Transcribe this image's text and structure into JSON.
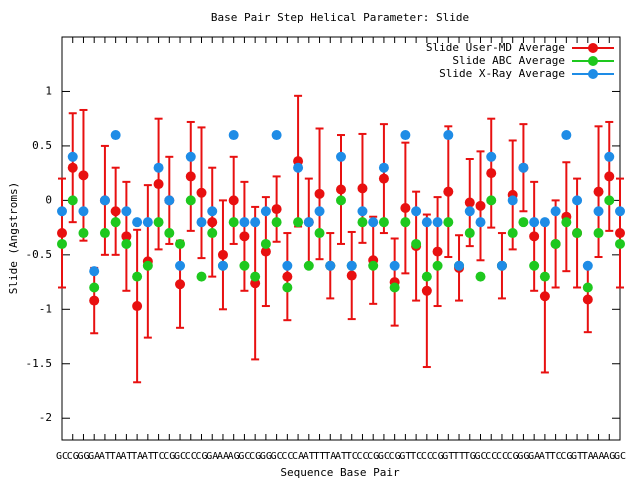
{
  "chart_data": {
    "type": "line",
    "title": "Base Pair Step Helical Parameter: Slide",
    "xlabel": "Sequence Base Pair",
    "ylabel": "Slide (Angstroms)",
    "categories": [
      "GC",
      "CG",
      "GG",
      "GA",
      "AT",
      "TA",
      "AT",
      "TA",
      "AT",
      "TC",
      "CG",
      "GC",
      "CC",
      "CG",
      "GA",
      "AA",
      "AG",
      "GC",
      "CG",
      "GG",
      "GC",
      "CC",
      "CA",
      "AT",
      "TT",
      "TA",
      "AT",
      "TC",
      "CC",
      "CG",
      "GC",
      "CG",
      "GT",
      "TC",
      "CC",
      "CG",
      "GT",
      "TT",
      "TG",
      "GC",
      "CC",
      "CC",
      "CG",
      "GG",
      "GA",
      "AT",
      "TC",
      "CG",
      "GT",
      "TA",
      "AA",
      "AG",
      "GC"
    ],
    "ylim": [
      -2.2,
      1.5
    ],
    "yticks": [
      -2,
      -1.5,
      -1,
      -0.5,
      0,
      0.5,
      1
    ],
    "legend": "top-right",
    "series": [
      {
        "name": "Slide User-MD Average",
        "color": "#e81010",
        "values": [
          -0.3,
          0.3,
          0.23,
          -0.92,
          0,
          -0.1,
          -0.33,
          -0.97,
          -0.56,
          0.15,
          0,
          -0.77,
          0.22,
          0.07,
          -0.2,
          -0.5,
          0,
          -0.33,
          -0.76,
          -0.47,
          -0.08,
          -0.7,
          0.36,
          -0.2,
          0.06,
          -0.6,
          0.1,
          -0.69,
          0.11,
          -0.55,
          0.2,
          -0.75,
          -0.07,
          -0.42,
          -0.83,
          -0.47,
          0.08,
          -0.62,
          -0.02,
          -0.05,
          0.25,
          -0.6,
          0.05,
          0.3,
          -0.33,
          -0.88,
          -0.4,
          -0.15,
          -0.3,
          -0.91,
          0.08,
          0.22,
          -0.3
        ],
        "errors": [
          0.5,
          0.5,
          0.6,
          0.3,
          0.5,
          0.4,
          0.5,
          0.7,
          0.7,
          0.6,
          0.4,
          0.4,
          0.5,
          0.6,
          0.5,
          0.5,
          0.4,
          0.5,
          0.7,
          0.5,
          0.3,
          0.4,
          0.6,
          0.4,
          0.6,
          0.3,
          0.5,
          0.4,
          0.5,
          0.4,
          0.5,
          0.4,
          0.6,
          0.5,
          0.7,
          0.5,
          0.6,
          0.3,
          0.4,
          0.5,
          0.5,
          0.3,
          0.5,
          0.4,
          0.5,
          0.7,
          0.4,
          0.5,
          0.5,
          0.3,
          0.6,
          0.5,
          0.5
        ]
      },
      {
        "name": "Slide ABC Average",
        "color": "#1ec81e",
        "values": [
          -0.4,
          0,
          -0.3,
          -0.8,
          -0.3,
          -0.2,
          -0.4,
          -0.7,
          -0.6,
          -0.2,
          -0.3,
          -0.4,
          0,
          -0.7,
          -0.3,
          -0.6,
          -0.2,
          -0.6,
          -0.7,
          -0.4,
          -0.2,
          -0.8,
          -0.2,
          -0.6,
          -0.3,
          -0.6,
          0,
          -0.6,
          -0.2,
          -0.6,
          -0.2,
          -0.8,
          -0.2,
          -0.4,
          -0.7,
          -0.6,
          -0.2,
          -0.6,
          -0.3,
          -0.7,
          0,
          -0.6,
          -0.3,
          -0.2,
          -0.6,
          -0.7,
          -0.4,
          -0.2,
          -0.3,
          -0.8,
          -0.3,
          0,
          -0.4
        ]
      },
      {
        "name": "Slide X-Ray Average",
        "color": "#1e8ce6",
        "values": [
          -0.1,
          0.4,
          -0.1,
          -0.65,
          0,
          0.6,
          -0.1,
          -0.2,
          -0.2,
          0.3,
          0,
          -0.6,
          0.4,
          -0.2,
          -0.1,
          -0.6,
          0.6,
          -0.2,
          -0.2,
          -0.1,
          0.6,
          -0.6,
          0.3,
          -0.2,
          -0.1,
          -0.6,
          0.4,
          -0.6,
          -0.1,
          -0.2,
          0.3,
          -0.6,
          0.6,
          -0.1,
          -0.2,
          -0.2,
          0.6,
          -0.6,
          -0.1,
          -0.2,
          0.4,
          -0.6,
          0,
          0.3,
          -0.2,
          -0.2,
          -0.1,
          0.6,
          0,
          -0.6,
          -0.1,
          0.4,
          -0.1
        ]
      }
    ]
  }
}
